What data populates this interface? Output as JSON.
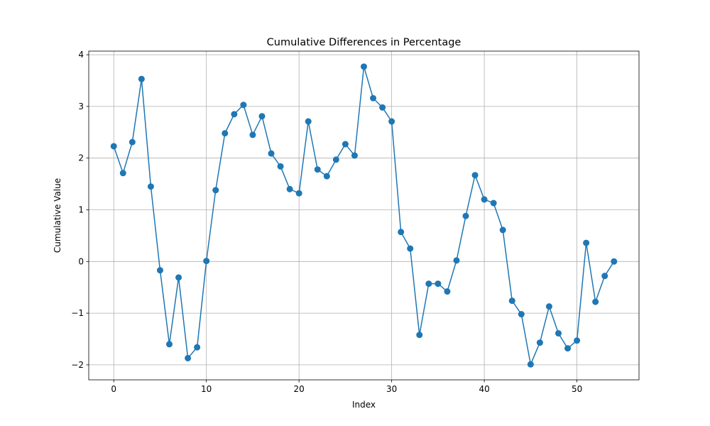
{
  "chart_data": {
    "type": "line",
    "title": "Cumulative Differences in Percentage",
    "xlabel": "Index",
    "ylabel": "Cumulative Value",
    "xlim": [
      -2.7,
      56.7
    ],
    "ylim": [
      -2.29,
      4.07
    ],
    "xticks": [
      0,
      10,
      20,
      30,
      40,
      50
    ],
    "yticks": [
      -2,
      -1,
      0,
      1,
      2,
      3,
      4
    ],
    "grid": true,
    "marker": "circle",
    "color": "#1f77b4",
    "series": [
      {
        "x": [
          0,
          1,
          2,
          3,
          4,
          5,
          6,
          7,
          8,
          9,
          10,
          11,
          12,
          13,
          14,
          15,
          16,
          17,
          18,
          19,
          20,
          21,
          22,
          23,
          24,
          25,
          26,
          27,
          28,
          29,
          30,
          31,
          32,
          33,
          34,
          35,
          36,
          37,
          38,
          39,
          40,
          41,
          42,
          43,
          44,
          45,
          46,
          47,
          48,
          49,
          50,
          51,
          52,
          53,
          54
        ],
        "values": [
          2.23,
          1.71,
          2.31,
          3.53,
          1.45,
          -0.17,
          -1.6,
          -0.31,
          -1.87,
          -1.66,
          0.01,
          1.38,
          2.48,
          2.85,
          3.03,
          2.45,
          2.81,
          2.09,
          1.84,
          1.4,
          1.32,
          2.71,
          1.78,
          1.65,
          1.97,
          2.27,
          2.05,
          3.77,
          3.16,
          2.98,
          2.71,
          0.57,
          0.25,
          -1.42,
          -0.43,
          -0.43,
          -0.58,
          0.02,
          0.88,
          1.67,
          1.2,
          1.13,
          0.61,
          -0.76,
          -1.02,
          -1.99,
          -1.57,
          -0.87,
          -1.39,
          -1.68,
          -1.53,
          0.36,
          -0.78,
          -0.28,
          0.0
        ]
      }
    ]
  }
}
